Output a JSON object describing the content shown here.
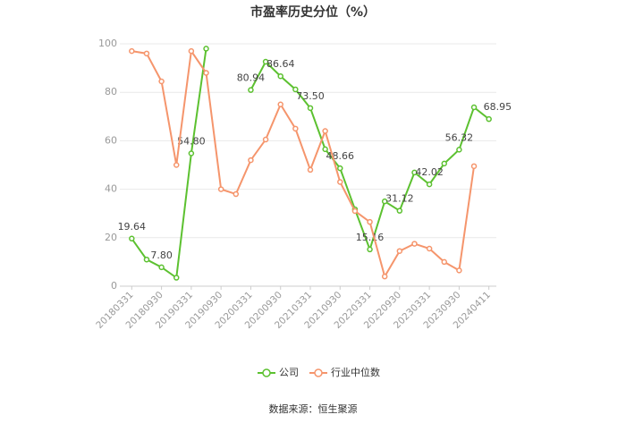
{
  "chart_data": {
    "type": "line",
    "title": "市盈率历史分位（%）",
    "categories": [
      "20180331",
      null,
      "20180930",
      null,
      "20190331",
      null,
      "20190930",
      null,
      "20200331",
      null,
      "20200930",
      null,
      "20210331",
      null,
      "20210930",
      null,
      "20220331",
      null,
      "20220930",
      null,
      "20230331",
      null,
      "20230930",
      null,
      "20240411"
    ],
    "series": [
      {
        "name": "公司",
        "color": "#5cc130",
        "values": [
          19.64,
          11,
          7.8,
          3.5,
          54.8,
          98,
          null,
          null,
          80.94,
          92.6,
          86.64,
          81.2,
          73.5,
          56.5,
          48.66,
          31.7,
          15.16,
          35,
          31.12,
          46.9,
          42.02,
          50.6,
          56.32,
          73.8,
          68.95
        ],
        "value_labels": [
          "19.64",
          null,
          "7.80",
          null,
          "54.80",
          null,
          null,
          null,
          "80.94",
          null,
          "86.64",
          null,
          "73.50",
          null,
          "48.66",
          null,
          "15.16",
          null,
          "31.12",
          null,
          "42.02",
          null,
          "56.32",
          null,
          "68.95"
        ]
      },
      {
        "name": "行业中位数",
        "color": "#f5956c",
        "values": [
          97,
          96,
          84.5,
          50,
          97,
          88,
          40,
          38,
          52,
          60.5,
          75,
          65,
          48,
          64,
          43,
          31,
          26.5,
          4,
          14.5,
          17.5,
          15.5,
          10,
          6.5,
          49.5,
          null
        ]
      }
    ],
    "ylim": [
      0,
      100
    ],
    "yticks": [
      0,
      20,
      40,
      60,
      80,
      100
    ],
    "grid": true,
    "legend": "bottom",
    "source": "数据来源：恒生聚源"
  }
}
